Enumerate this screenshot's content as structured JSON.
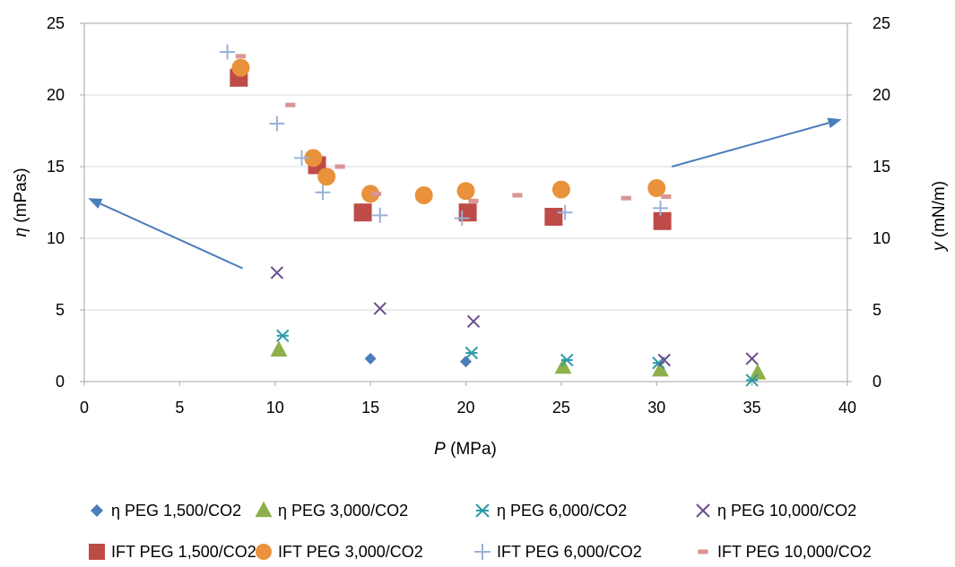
{
  "chart_data": {
    "type": "scatter",
    "xlabel": {
      "var": "P",
      "unit": " (MPa)"
    },
    "ylabel_left": {
      "var": "η",
      "unit": " (mPas)"
    },
    "ylabel_right": {
      "var": "y",
      "unit": " (mN/m)"
    },
    "xlim": [
      0,
      40
    ],
    "ylim_left": [
      0,
      25
    ],
    "ylim_right": [
      0,
      25
    ],
    "x_ticks": [
      "0",
      "5",
      "10",
      "15",
      "20",
      "25",
      "30",
      "35",
      "40"
    ],
    "y_ticks_left": [
      "0",
      "5",
      "10",
      "15",
      "20",
      "25"
    ],
    "y_ticks_right": [
      "0",
      "5",
      "10",
      "15",
      "20",
      "25"
    ],
    "grid": {
      "horizontal": true,
      "vertical": false
    },
    "legend_position": "bottom",
    "series": [
      {
        "name": "η PEG 1,500/CO2",
        "marker": "diamond",
        "color": "#4a7ebb",
        "x": [
          15,
          20
        ],
        "y": [
          1.6,
          1.4
        ]
      },
      {
        "name": "η PEG 3,000/CO2",
        "marker": "triangle",
        "color": "#8db04a",
        "x": [
          10.2,
          25.1,
          30.2,
          35.3
        ],
        "y": [
          2.2,
          1.0,
          0.8,
          0.6
        ]
      },
      {
        "name": "η PEG 6,000/CO2",
        "marker": "asterisk",
        "color": "#2e9aa8",
        "x": [
          10.4,
          20.3,
          25.3,
          30.1,
          35
        ],
        "y": [
          3.2,
          2.0,
          1.5,
          1.3,
          0.1
        ]
      },
      {
        "name": "η PEG 10,000/CO2",
        "marker": "x",
        "color": "#6a4d8c",
        "x": [
          10.1,
          15.5,
          20.4,
          30.4,
          35
        ],
        "y": [
          7.6,
          5.1,
          4.2,
          1.5,
          1.6
        ]
      },
      {
        "name": "IFT PEG 1,500/CO2",
        "marker": "square",
        "color": "#be4b48",
        "x": [
          8.1,
          12.2,
          14.6,
          20.1,
          24.6,
          30.3
        ],
        "y": [
          21.2,
          15.1,
          11.8,
          11.8,
          11.5,
          11.2
        ]
      },
      {
        "name": "IFT PEG 3,000/CO2",
        "marker": "circle",
        "color": "#e9913b",
        "x": [
          8.2,
          12,
          12.7,
          15,
          17.8,
          20,
          25,
          30
        ],
        "y": [
          21.9,
          15.6,
          14.3,
          13.1,
          13.0,
          13.3,
          13.4,
          13.5
        ]
      },
      {
        "name": "IFT PEG 6,000/CO2",
        "marker": "plus",
        "color": "#98b2d8",
        "x": [
          7.5,
          10.1,
          11.4,
          12.5,
          15.5,
          19.8,
          25.2,
          30.2
        ],
        "y": [
          23.0,
          18.0,
          15.6,
          13.2,
          11.6,
          11.4,
          11.8,
          12.1
        ]
      },
      {
        "name": "IFT PEG 10,000/CO2",
        "marker": "dash",
        "color": "#d99694",
        "x": [
          8.2,
          10.8,
          13.4,
          15.3,
          20.4,
          22.7,
          28.4,
          30.5
        ],
        "y": [
          22.7,
          19.3,
          15.0,
          13.1,
          12.6,
          13.0,
          12.8,
          12.9
        ]
      }
    ],
    "arrows": [
      {
        "color": "#4a7ebb",
        "from": [
          8.3,
          7.9
        ],
        "to": [
          0.2,
          12.8
        ]
      },
      {
        "color": "#4a7ebb",
        "from": [
          30.8,
          15.0
        ],
        "to": [
          39.7,
          18.3
        ]
      }
    ]
  }
}
